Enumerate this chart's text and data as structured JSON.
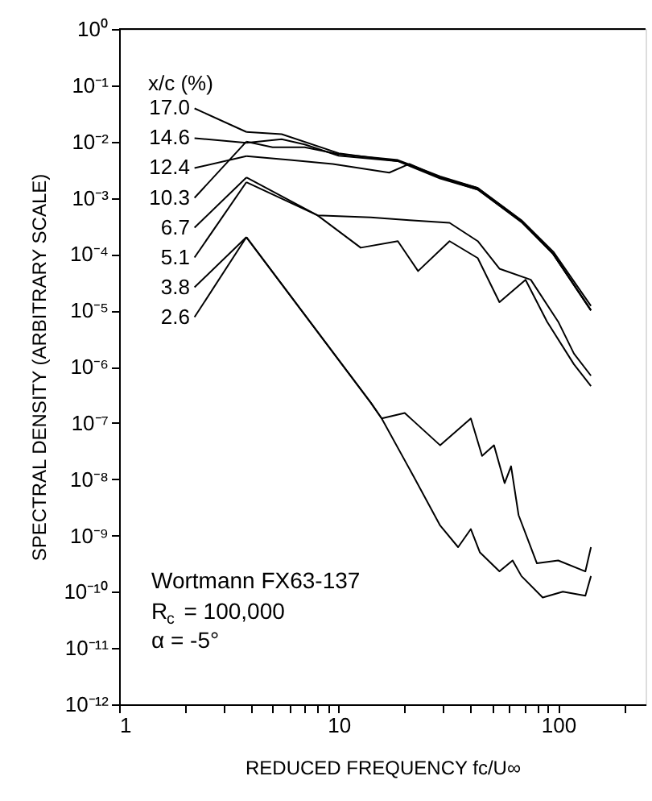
{
  "chart_data": {
    "type": "line",
    "xlabel": "REDUCED FREQUENCY fc/U∞",
    "ylabel": "SPECTRAL DENSITY  (ARBITRARY SCALE)",
    "log": "xy",
    "grid": false,
    "legend": "top left",
    "marker": "none",
    "line_style": "solid",
    "xlim": [
      1,
      250
    ],
    "ylim": [
      1e-12,
      1
    ],
    "xticks": [
      1,
      {
        "value": 2,
        "label": null
      },
      {
        "value": 3,
        "label": null
      },
      {
        "value": 4,
        "label": null
      },
      {
        "value": 5,
        "label": null
      },
      {
        "value": 6,
        "label": null
      },
      {
        "value": 7,
        "label": null
      },
      {
        "value": 8,
        "label": null
      },
      {
        "value": 9,
        "label": null
      },
      10,
      {
        "value": 20,
        "label": null
      },
      {
        "value": 30,
        "label": null
      },
      {
        "value": 40,
        "label": null
      },
      {
        "value": 50,
        "label": null
      },
      {
        "value": 60,
        "label": null
      },
      {
        "value": 70,
        "label": null
      },
      {
        "value": 80,
        "label": null
      },
      {
        "value": 90,
        "label": null
      },
      100,
      {
        "value": 200,
        "label": null
      }
    ],
    "yticks": [
      {
        "value": 1,
        "label": "10⁰"
      },
      {
        "value": 0.1,
        "label": "10⁻¹"
      },
      {
        "value": 0.01,
        "label": "10⁻²"
      },
      {
        "value": 0.001,
        "label": "10⁻³"
      },
      {
        "value": 0.0001,
        "label": "10⁻⁴"
      },
      {
        "value": 1e-05,
        "label": "10⁻⁵"
      },
      {
        "value": 1e-06,
        "label": "10⁻⁶"
      },
      {
        "value": 1e-07,
        "label": "10⁻⁷"
      },
      {
        "value": 1e-08,
        "label": "10⁻⁸"
      },
      {
        "value": 1e-09,
        "label": "10⁻⁹"
      },
      {
        "value": 1e-10,
        "label": "10⁻¹⁰"
      },
      {
        "value": 1e-11,
        "label": "10⁻¹¹"
      },
      {
        "value": 1e-12,
        "label": "10⁻¹²"
      }
    ],
    "annotations": [
      "x/c (%)",
      "Wortmann FX63-137",
      "R$_{c}$ = 100,000",
      "α = -5°"
    ],
    "series": [
      {
        "name": "17.0",
        "color": "#000000",
        "x": [
          3.8,
          5.5,
          10,
          18.6,
          29,
          43,
          68,
          95,
          141
        ],
        "values": [
          0.0148,
          0.0135,
          0.0062,
          0.0045,
          0.0023,
          0.0015,
          0.00039,
          0.0001,
          1e-05
        ]
      },
      {
        "name": "14.6",
        "color": "#000000",
        "x": [
          3.8,
          5.5,
          7,
          10,
          18.6,
          29,
          43,
          68,
          95,
          141
        ],
        "values": [
          0.0095,
          0.011,
          0.0089,
          0.0056,
          0.0045,
          0.0022,
          0.0014,
          0.00037,
          0.0001,
          1e-05
        ]
      },
      {
        "name": "12.4",
        "color": "#000000",
        "x": [
          3.8,
          6,
          9.4,
          17,
          21,
          29,
          43,
          68,
          95,
          141
        ],
        "values": [
          0.0055,
          0.0047,
          0.004,
          0.0028,
          0.004,
          0.0023,
          0.0014,
          0.00038,
          0.0001,
          1e-05
        ]
      },
      {
        "name": "10.3",
        "color": "#000000",
        "x": [
          3.8,
          5,
          7,
          10,
          18.6,
          29,
          43,
          68,
          95,
          141
        ],
        "values": [
          0.01,
          0.0079,
          0.0079,
          0.006,
          0.0047,
          0.0024,
          0.0015,
          0.0004,
          0.00011,
          1.2e-05
        ]
      },
      {
        "name": "6.7",
        "color": "#000000",
        "x": [
          3.8,
          8,
          14,
          21,
          32,
          43,
          54,
          75,
          100,
          118,
          141
        ],
        "values": [
          0.0023,
          0.00049,
          0.00045,
          0.0004,
          0.00036,
          0.00017,
          5.5e-05,
          3.5e-05,
          6.3e-06,
          1.7e-06,
          6.9e-07
        ]
      },
      {
        "name": "5.1",
        "color": "#000000",
        "x": [
          3.8,
          8,
          12.6,
          18.6,
          23,
          32,
          43,
          54,
          71,
          89,
          118,
          141
        ],
        "values": [
          0.0019,
          0.00049,
          0.00013,
          0.00017,
          5e-05,
          0.00017,
          8.5e-05,
          1.4e-05,
          3.5e-05,
          6.3e-06,
          1.1e-06,
          4.5e-07
        ]
      },
      {
        "name": "3.8",
        "color": "#000000",
        "x": [
          3.8,
          14,
          15.7,
          20,
          29,
          40,
          45,
          51,
          57,
          61,
          66,
          80,
          100,
          133,
          141
        ],
        "values": [
          0.0002,
          2.3e-07,
          1.2e-07,
          1.5e-07,
          4e-08,
          1.2e-07,
          2.6e-08,
          4e-08,
          8.5e-09,
          1.7e-08,
          2.3e-09,
          3.2e-10,
          3.6e-10,
          2.3e-10,
          6.2e-10
        ]
      },
      {
        "name": "2.6",
        "color": "#000000",
        "x": [
          3.8,
          14,
          15.7,
          22,
          29,
          35,
          40,
          44,
          54,
          62,
          68,
          85,
          105,
          133,
          141
        ],
        "values": [
          0.0002,
          2.3e-07,
          1.2e-07,
          1.1e-08,
          1.5e-09,
          6.2e-10,
          1.3e-09,
          5e-10,
          2.3e-10,
          3.6e-10,
          1.9e-10,
          7.9e-11,
          1e-10,
          8.5e-11,
          1.9e-10
        ]
      }
    ]
  }
}
